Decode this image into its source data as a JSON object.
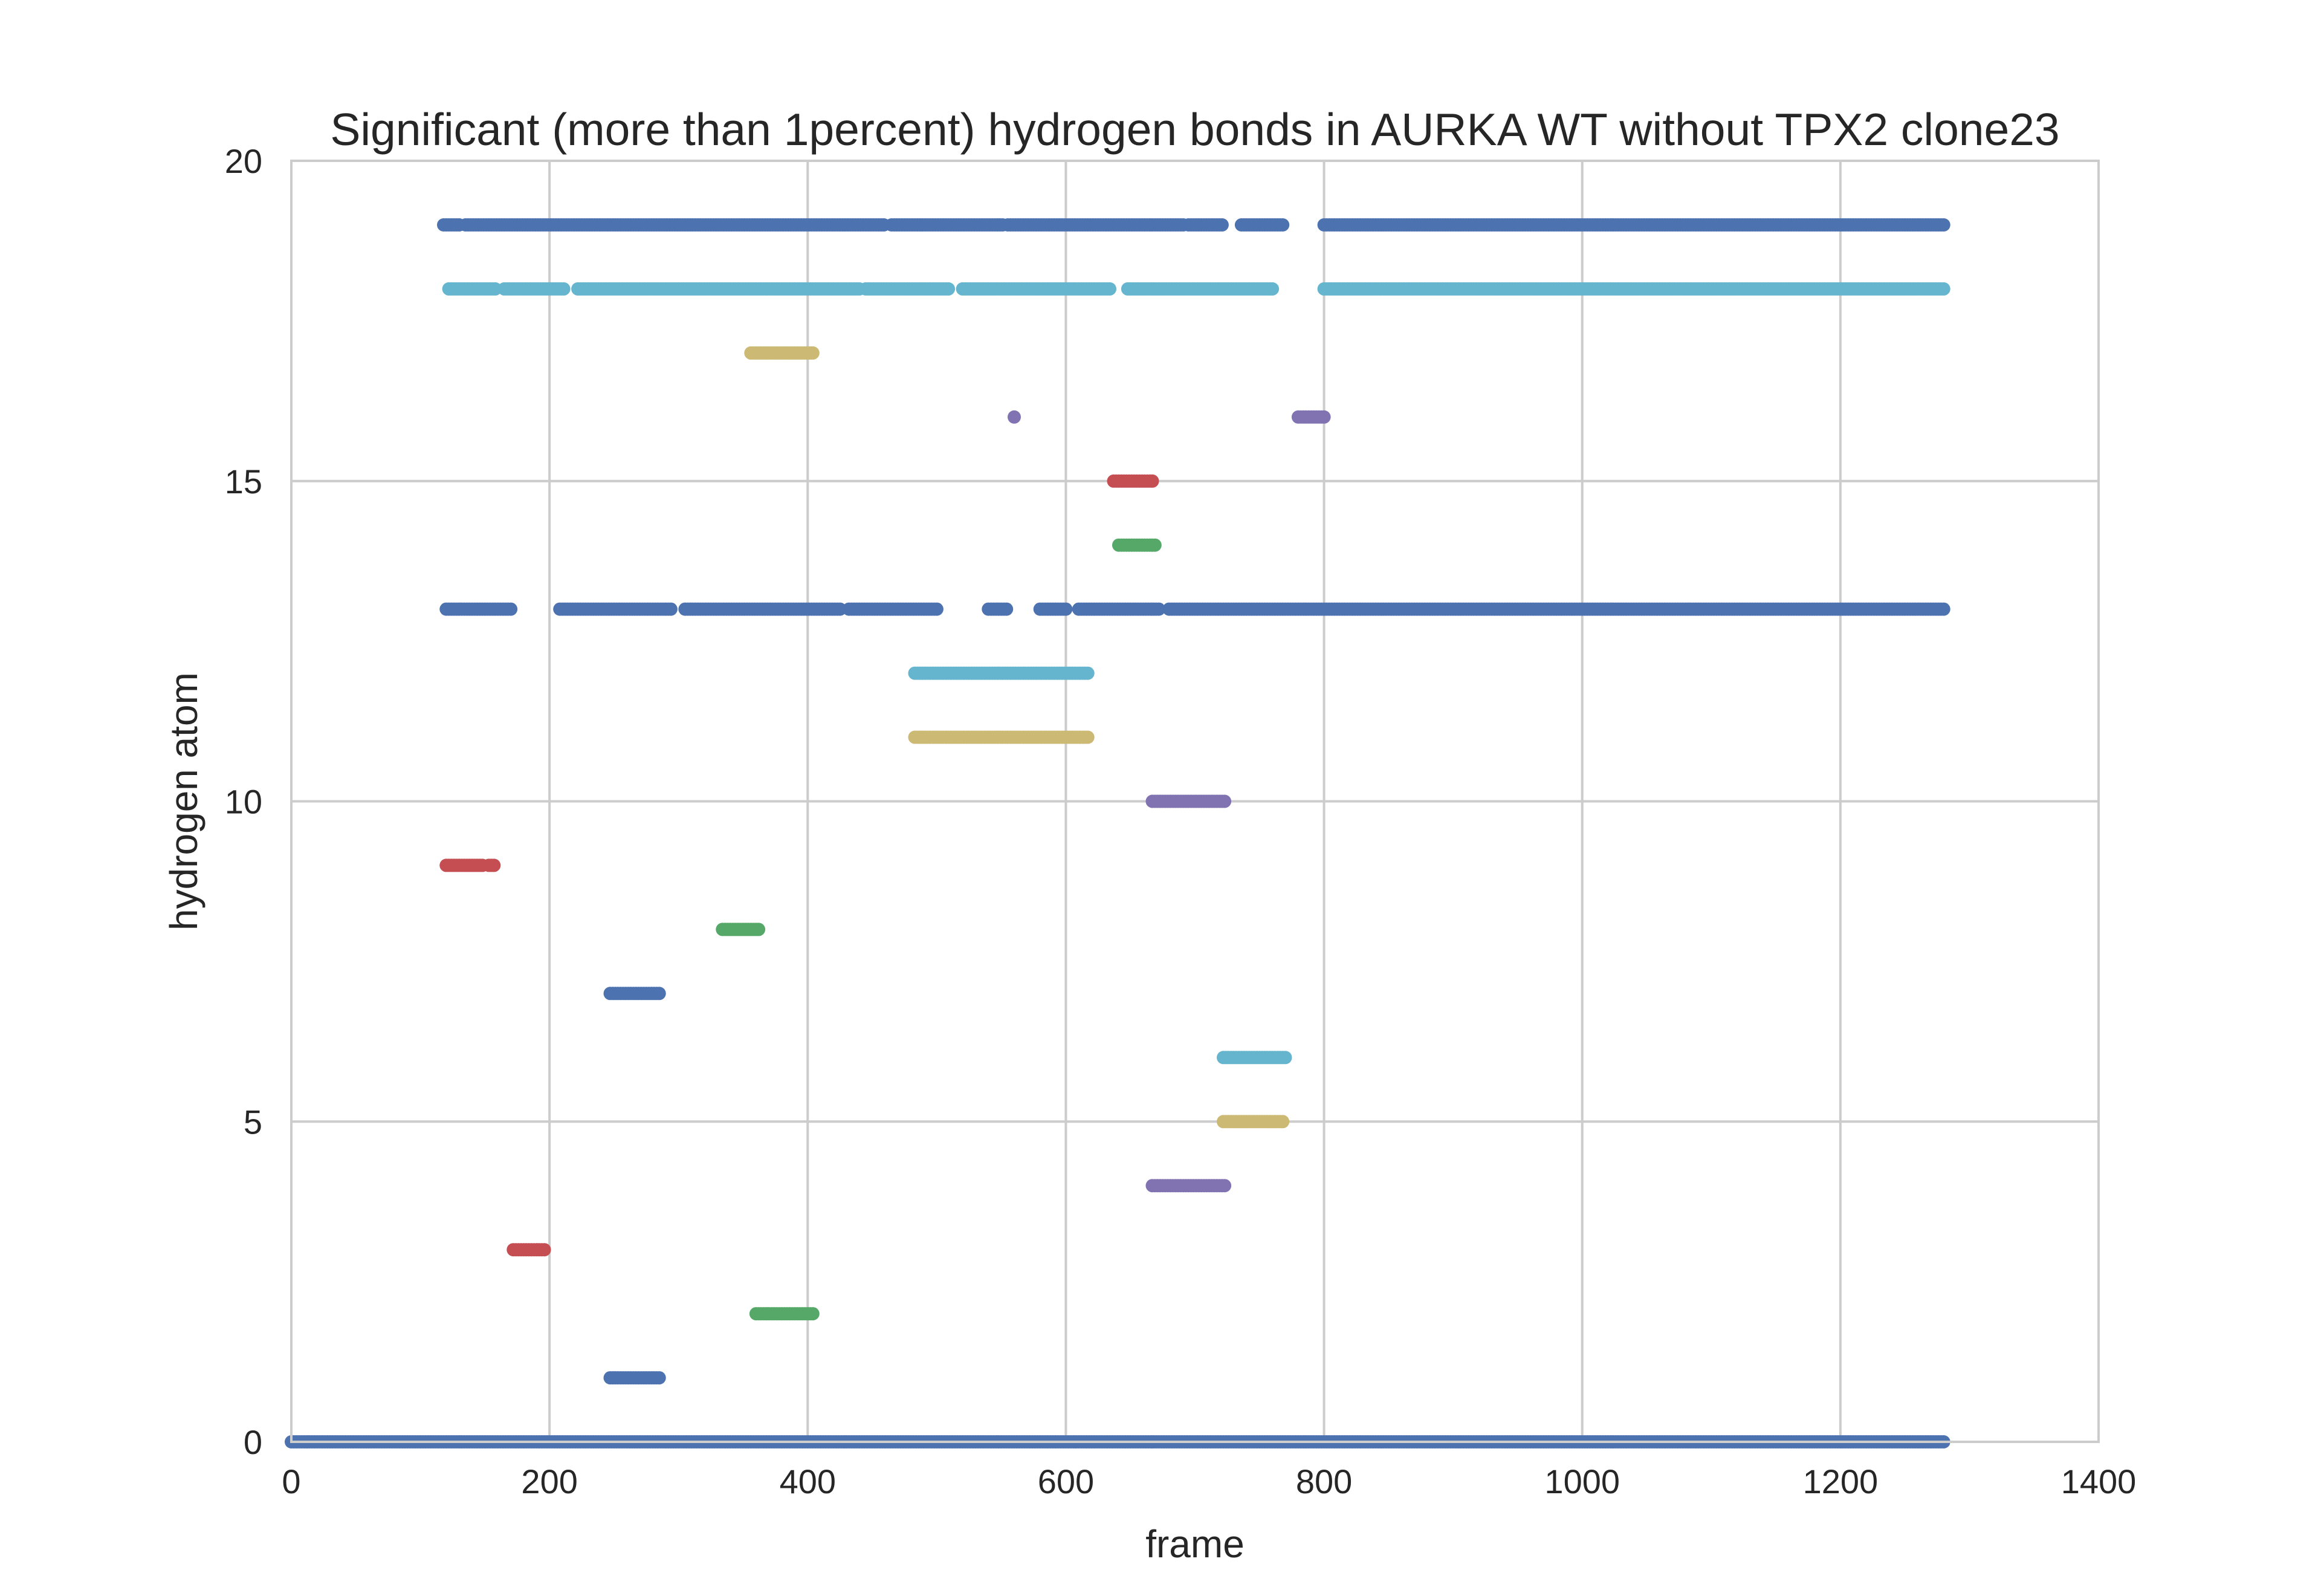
{
  "chart_data": {
    "type": "scatter",
    "title": "Significant (more than 1percent) hydrogen bonds in AURKA WT without TPX2 clone23",
    "xlabel": "frame",
    "ylabel": "hydrogen atom",
    "xlim": [
      0,
      1400
    ],
    "ylim": [
      0,
      20
    ],
    "xticks": [
      0,
      200,
      400,
      600,
      800,
      1000,
      1200,
      1400
    ],
    "yticks": [
      0,
      5,
      10,
      15,
      20
    ],
    "xtick_labels": [
      "0",
      "200",
      "400",
      "600",
      "800",
      "1000",
      "1200",
      "1400"
    ],
    "ytick_labels": [
      "0",
      "5",
      "10",
      "15",
      "20"
    ],
    "grid": true,
    "legend": "none",
    "palette": [
      "#4c72b0",
      "#55a868",
      "#c44e52",
      "#8172b2",
      "#ccb974",
      "#64b5cd"
    ],
    "series": [
      {
        "y": 0,
        "color": "#4c72b0",
        "segments": [
          [
            0,
            1280
          ]
        ]
      },
      {
        "y": 1,
        "color": "#4c72b0",
        "segments": [
          [
            247,
            286
          ]
        ]
      },
      {
        "y": 2,
        "color": "#55a868",
        "segments": [
          [
            360,
            405
          ]
        ]
      },
      {
        "y": 3,
        "color": "#c44e52",
        "segments": [
          [
            172,
            196
          ]
        ]
      },
      {
        "y": 4,
        "color": "#8172b2",
        "segments": [
          [
            667,
            723
          ]
        ]
      },
      {
        "y": 5,
        "color": "#ccb974",
        "segments": [
          [
            722,
            768
          ]
        ]
      },
      {
        "y": 6,
        "color": "#64b5cd",
        "segments": [
          [
            722,
            770
          ]
        ]
      },
      {
        "y": 7,
        "color": "#4c72b0",
        "segments": [
          [
            247,
            286
          ]
        ]
      },
      {
        "y": 8,
        "color": "#55a868",
        "segments": [
          [
            334,
            362
          ]
        ]
      },
      {
        "y": 9,
        "color": "#c44e52",
        "segments": [
          [
            120,
            148
          ],
          [
            153,
            158
          ]
        ]
      },
      {
        "y": 10,
        "color": "#8172b2",
        "segments": [
          [
            667,
            723
          ]
        ]
      },
      {
        "y": 11,
        "color": "#ccb974",
        "segments": [
          [
            483,
            618
          ]
        ]
      },
      {
        "y": 12,
        "color": "#64b5cd",
        "segments": [
          [
            483,
            618
          ]
        ]
      },
      {
        "y": 13,
        "color": "#4c72b0",
        "segments": [
          [
            120,
            170
          ],
          [
            208,
            295
          ],
          [
            305,
            425
          ],
          [
            432,
            450
          ],
          [
            452,
            500
          ],
          [
            540,
            555
          ],
          [
            580,
            600
          ],
          [
            610,
            672
          ],
          [
            680,
            1280
          ]
        ]
      },
      {
        "y": 14,
        "color": "#55a868",
        "segments": [
          [
            641,
            670
          ]
        ]
      },
      {
        "y": 15,
        "color": "#c44e52",
        "segments": [
          [
            637,
            668
          ]
        ]
      },
      {
        "y": 16,
        "color": "#8172b2",
        "segments": [
          [
            560,
            561
          ],
          [
            780,
            800
          ]
        ]
      },
      {
        "y": 17,
        "color": "#ccb974",
        "segments": [
          [
            356,
            405
          ]
        ]
      },
      {
        "y": 18,
        "color": "#64b5cd",
        "segments": [
          [
            122,
            158
          ],
          [
            165,
            212
          ],
          [
            222,
            440
          ],
          [
            445,
            510
          ],
          [
            520,
            635
          ],
          [
            648,
            760
          ],
          [
            800,
            1280
          ]
        ]
      },
      {
        "y": 19,
        "color": "#4c72b0",
        "segments": [
          [
            118,
            130
          ],
          [
            135,
            460
          ],
          [
            465,
            552
          ],
          [
            555,
            692
          ],
          [
            695,
            722
          ],
          [
            736,
            768
          ],
          [
            800,
            1280
          ]
        ]
      }
    ]
  }
}
